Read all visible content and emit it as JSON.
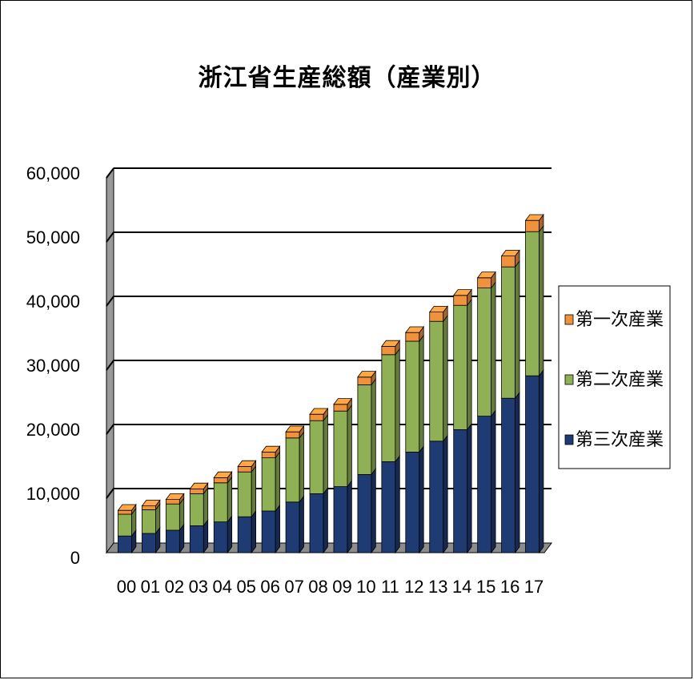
{
  "chart_data": {
    "type": "bar",
    "stacked": true,
    "three_d": true,
    "title": "浙江省生産総額（産業別）",
    "xlabel": "",
    "ylabel": "",
    "ylim": [
      0,
      60000
    ],
    "y_ticks": [
      "0",
      "10,000",
      "20,000",
      "30,000",
      "40,000",
      "50,000",
      "60,000"
    ],
    "grid": true,
    "legend_position": "right",
    "categories": [
      "00",
      "01",
      "02",
      "03",
      "04",
      "05",
      "06",
      "07",
      "08",
      "09",
      "10",
      "11",
      "12",
      "13",
      "14",
      "15",
      "16",
      "17"
    ],
    "series": [
      {
        "name": "第三次産業",
        "color": "#1F3B73",
        "values": [
          2600,
          3000,
          3500,
          4200,
          4800,
          5600,
          6500,
          7900,
          9200,
          10300,
          12200,
          14200,
          15700,
          17400,
          19200,
          21300,
          24100,
          27600
        ]
      },
      {
        "name": "第二次産業",
        "color": "#8FB055",
        "values": [
          3400,
          3700,
          4100,
          5000,
          6100,
          7000,
          8300,
          10000,
          11400,
          11800,
          14000,
          16700,
          17300,
          18700,
          19400,
          20000,
          20500,
          22500
        ]
      },
      {
        "name": "第一次産業",
        "color": "#F0923C",
        "values": [
          600,
          600,
          700,
          750,
          800,
          850,
          900,
          950,
          1000,
          1050,
          1200,
          1300,
          1350,
          1450,
          1550,
          1600,
          1700,
          1750
        ]
      }
    ],
    "legend_order": [
      "第一次産業",
      "第二次産業",
      "第三次産業"
    ]
  },
  "colors": {
    "wall": "#9A9A9A",
    "floor": "#8C8C8C",
    "gridline": "#000000"
  }
}
